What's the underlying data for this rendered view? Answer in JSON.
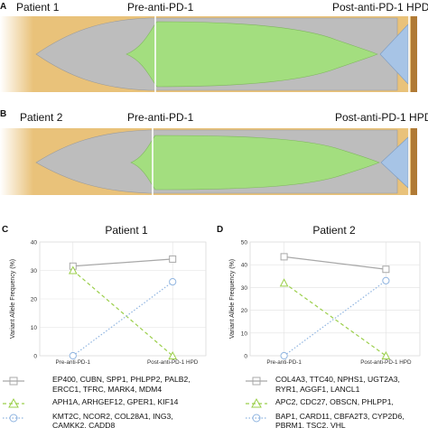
{
  "fishplots": [
    {
      "letter": "A",
      "patient": "Patient 1",
      "pre": "Pre-anti-PD-1",
      "post": "Post-anti-PD-1 HPD"
    },
    {
      "letter": "B",
      "patient": "Patient 2",
      "pre": "Pre-anti-PD-1",
      "post": "Post-anti-PD-1 HPD"
    }
  ],
  "colors": {
    "background_gold": "#e9c27a",
    "end_bar_brown": "#b07a35",
    "clone_grey": "#bdbdbd",
    "clone_green": "#a3de7f",
    "clone_blue": "#a7c4e6",
    "series_grey": "#a8a8a8",
    "series_green": "#9bcf4a",
    "series_blue": "#8fb4e0"
  },
  "chart_data": [
    {
      "letter": "C",
      "type": "line",
      "title": "Patient 1",
      "x": [
        "Pre-anti-PD-1",
        "Post-anti-PD-1 HPD"
      ],
      "ylabel": "Variant Allele Frequency (%)",
      "ylim": [
        0,
        40
      ],
      "yticks": [
        "0",
        "10",
        "20",
        "30",
        "40"
      ],
      "grid": true,
      "series": [
        {
          "values": [
            31.5,
            34
          ],
          "style": "solid",
          "marker": "square",
          "color": "#a8a8a8"
        },
        {
          "values": [
            30,
            0
          ],
          "style": "dashed",
          "marker": "triangle",
          "color": "#9bcf4a"
        },
        {
          "values": [
            0,
            26
          ],
          "style": "dotted",
          "marker": "circle",
          "color": "#8fb4e0"
        }
      ],
      "legend": [
        [
          "EP400, CUBN, SPP1, PHLPP2, PALB2,",
          "ERCC1, TFRC, MARK4, MDM4"
        ],
        [
          "APH1A, ARHGEF12, GPER1, KIF14"
        ],
        [
          "KMT2C, NCOR2, COL28A1, ING3,",
          "CAMKK2, CADD8"
        ]
      ]
    },
    {
      "letter": "D",
      "type": "line",
      "title": "Patient 2",
      "x": [
        "Pre-anti-PD-1",
        "Post-anti-PD-1 HPD"
      ],
      "ylabel": "Variant Allele Frequency (%)",
      "ylim": [
        0,
        50
      ],
      "yticks": [
        "0",
        "10",
        "20",
        "30",
        "40",
        "50"
      ],
      "grid": true,
      "series": [
        {
          "values": [
            43.5,
            38
          ],
          "style": "solid",
          "marker": "square",
          "color": "#a8a8a8"
        },
        {
          "values": [
            32,
            0
          ],
          "style": "dashed",
          "marker": "triangle",
          "color": "#9bcf4a"
        },
        {
          "values": [
            0,
            33
          ],
          "style": "dotted",
          "marker": "circle",
          "color": "#8fb4e0"
        }
      ],
      "legend": [
        [
          "COL4A3, TTC40, NPHS1, UGT2A3,",
          "RYR1, AGGF1, LANCL1"
        ],
        [
          "APC2, CDC27, OBSCN, PHLPP1,"
        ],
        [
          "BAP1, CARD11, CBFA2T3, CYP2D6,",
          "PBRM1, TSC2, VHL"
        ]
      ]
    }
  ]
}
